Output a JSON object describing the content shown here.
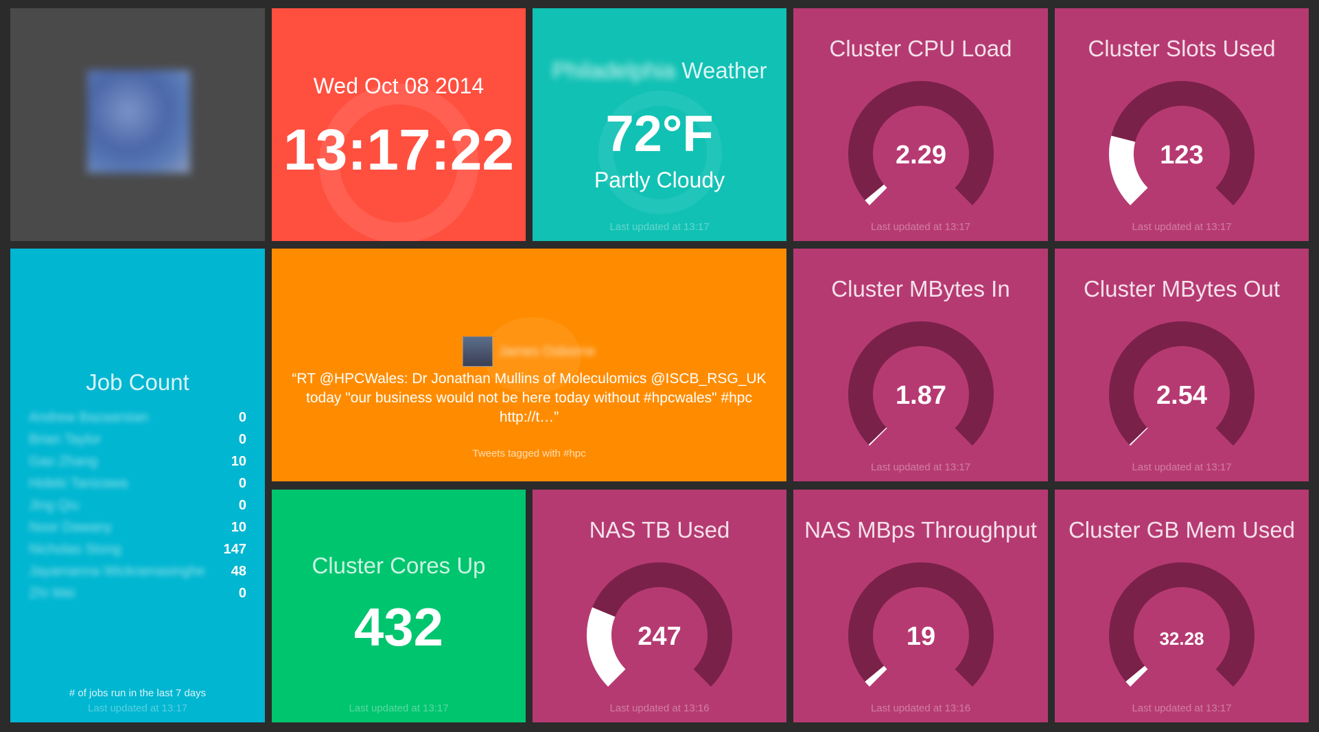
{
  "colors": {
    "background": "#2b2b2b",
    "logo_tile": "#4a4a4a",
    "clock_tile": "#ff4f3f",
    "weather_tile": "#11c1b4",
    "gauge_tile": "#b63a72",
    "gauge_track": "#7a2149",
    "gauge_fill": "#ffffff",
    "jobs_tile": "#00b6d1",
    "twitter_tile": "#ff8c00",
    "cores_tile": "#00c56f"
  },
  "logo": {
    "icon": "organization-logo"
  },
  "clock": {
    "date": "Wed Oct 08 2014",
    "time": "13:17:22",
    "icon": "clock-icon"
  },
  "weather": {
    "city": "Philadelphia",
    "label": "Weather",
    "temperature": "72°F",
    "condition": "Partly Cloudy",
    "updated": "Last updated at 13:17",
    "icon": "weather-icon"
  },
  "gauges": {
    "cpu": {
      "title": "Cluster CPU Load",
      "value": "2.29",
      "fraction": 0.02,
      "updated": "Last updated at 13:17"
    },
    "slots": {
      "title": "Cluster Slots Used",
      "value": "123",
      "fraction": 0.22,
      "updated": "Last updated at 13:17"
    },
    "mbin": {
      "title": "Cluster MBytes In",
      "value": "1.87",
      "fraction": 0.0,
      "updated": "Last updated at 13:17"
    },
    "mbout": {
      "title": "Cluster MBytes Out",
      "value": "2.54",
      "fraction": 0.0,
      "updated": "Last updated at 13:17"
    },
    "nas": {
      "title": "NAS TB Used",
      "value": "247",
      "fraction": 0.25,
      "updated": "Last updated at 13:16"
    },
    "nasmbps": {
      "title": "NAS MBps Throughput",
      "value": "19",
      "fraction": 0.02,
      "updated": "Last updated at 13:16"
    },
    "mem": {
      "title": "Cluster GB Mem Used",
      "value": "32.28",
      "fraction": 0.02,
      "updated": "Last updated at 13:17"
    }
  },
  "jobs": {
    "title": "Job Count",
    "rows": [
      {
        "name": "Andrew Bazaarstan",
        "count": "0"
      },
      {
        "name": "Brian Taylor",
        "count": "0"
      },
      {
        "name": "Gao Zhang",
        "count": "10"
      },
      {
        "name": "Hideki Tanizawa",
        "count": "0"
      },
      {
        "name": "Jing Qiu",
        "count": "0"
      },
      {
        "name": "Noor Dawany",
        "count": "10"
      },
      {
        "name": "Nicholas Stong",
        "count": "147"
      },
      {
        "name": "Jayamanna Wickramasinghe",
        "count": "48"
      },
      {
        "name": "Zhi Wei",
        "count": "0"
      }
    ],
    "footer": "# of jobs run in the last 7 days",
    "updated": "Last updated at 13:17"
  },
  "twitter": {
    "author": "James Osborne",
    "text": "“RT @HPCWales: Dr Jonathan Mullins of Moleculomics @ISCB_RSG_UK today \"our business would not be here today without #hpcwales\" #hpc http://t…”",
    "footer": "Tweets tagged with #hpc",
    "icon": "twitter-bird-icon"
  },
  "cores": {
    "title": "Cluster Cores Up",
    "value": "432",
    "updated": "Last updated at 13:17"
  }
}
